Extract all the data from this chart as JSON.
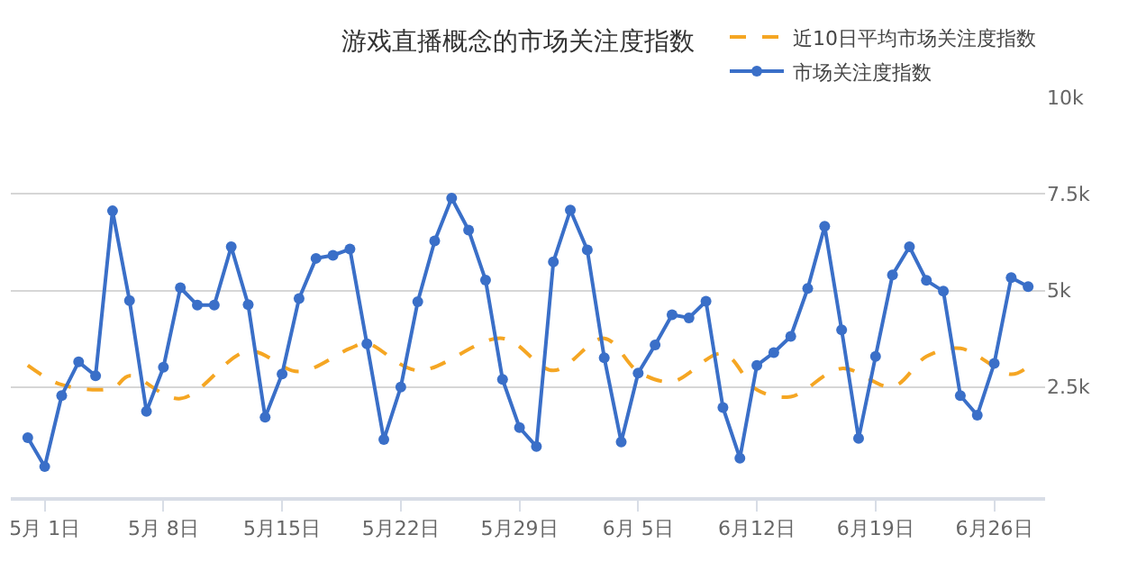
{
  "chart_data": {
    "type": "line",
    "title": "游戏直播概念的市场关注度指数",
    "xlim": [
      "--04-29",
      "--06-29"
    ],
    "xticks": [
      {
        "value": "--05-01",
        "label": "5月 1日"
      },
      {
        "value": "--05-08",
        "label": "5月 8日"
      },
      {
        "value": "--05-15",
        "label": "5月15日"
      },
      {
        "value": "--05-22",
        "label": "5月22日"
      },
      {
        "value": "--05-29",
        "label": "5月29日"
      },
      {
        "value": "--06-05",
        "label": "6月 5日"
      },
      {
        "value": "--06-12",
        "label": "6月12日"
      },
      {
        "value": "--06-19",
        "label": "6月19日"
      },
      {
        "value": "--06-26",
        "label": "6月26日"
      }
    ],
    "ylim": [
      -350,
      10000
    ],
    "yticks": [
      {
        "value": 2500,
        "label": "2.5k"
      },
      {
        "value": 5000,
        "label": "5k"
      },
      {
        "value": 7500,
        "label": "7.5k"
      },
      {
        "value": 10000,
        "label": "10k"
      }
    ],
    "grid": "y",
    "legend": "top right",
    "series": [
      {
        "name": "近10日平均市场关注度指数",
        "color": "#f5a623",
        "line_style": "dashed",
        "marker": "none",
        "x": [
          "--04-30",
          "--05-02",
          "--05-05",
          "--05-06",
          "--05-09",
          "--05-13",
          "--05-16",
          "--05-19",
          "--05-20",
          "--05-23",
          "--05-28",
          "--05-31",
          "--06-03",
          "--06-05",
          "--06-07",
          "--06-10",
          "--06-12",
          "--06-14",
          "--06-17",
          "--06-20",
          "--06-22",
          "--06-24",
          "--06-27",
          "--06-28"
        ],
        "values": [
          3060,
          2560,
          2470,
          2790,
          2200,
          3430,
          2900,
          3500,
          3630,
          2930,
          3760,
          2930,
          3760,
          2900,
          2640,
          3370,
          2430,
          2250,
          2980,
          2510,
          3290,
          3500,
          2830,
          3030
        ]
      },
      {
        "name": "市场关注度指数",
        "color": "#3a6fc8",
        "line_style": "solid",
        "marker": "circle",
        "x": [
          "--04-30",
          "--05-01",
          "--05-02",
          "--05-03",
          "--05-04",
          "--05-05",
          "--05-06",
          "--05-07",
          "--05-08",
          "--05-09",
          "--05-10",
          "--05-11",
          "--05-12",
          "--05-13",
          "--05-14",
          "--05-15",
          "--05-16",
          "--05-17",
          "--05-18",
          "--05-19",
          "--05-20",
          "--05-21",
          "--05-22",
          "--05-23",
          "--05-24",
          "--05-25",
          "--05-26",
          "--05-27",
          "--05-28",
          "--05-29",
          "--05-30",
          "--05-31",
          "--06-01",
          "--06-02",
          "--06-03",
          "--06-04",
          "--06-05",
          "--06-06",
          "--06-07",
          "--06-08",
          "--06-09",
          "--06-10",
          "--06-11",
          "--06-12",
          "--06-13",
          "--06-14",
          "--06-15",
          "--06-16",
          "--06-17",
          "--06-18",
          "--06-19",
          "--06-20",
          "--06-21",
          "--06-22",
          "--06-23",
          "--06-24",
          "--06-25",
          "--06-26",
          "--06-27",
          "--06-28"
        ],
        "values": [
          1190,
          440,
          2280,
          3150,
          2790,
          7060,
          4740,
          1870,
          3010,
          5070,
          4620,
          4620,
          6130,
          4630,
          1720,
          2840,
          4790,
          5830,
          5910,
          6070,
          3620,
          1140,
          2500,
          4710,
          6280,
          7390,
          6560,
          5270,
          2700,
          1450,
          960,
          5740,
          7080,
          6050,
          3260,
          1080,
          2860,
          3590,
          4370,
          4290,
          4720,
          1970,
          660,
          3060,
          3390,
          3810,
          5050,
          6660,
          3980,
          1170,
          3290,
          5400,
          6130,
          5260,
          4980,
          2280,
          1770,
          3110,
          5330,
          5100
        ]
      }
    ]
  }
}
